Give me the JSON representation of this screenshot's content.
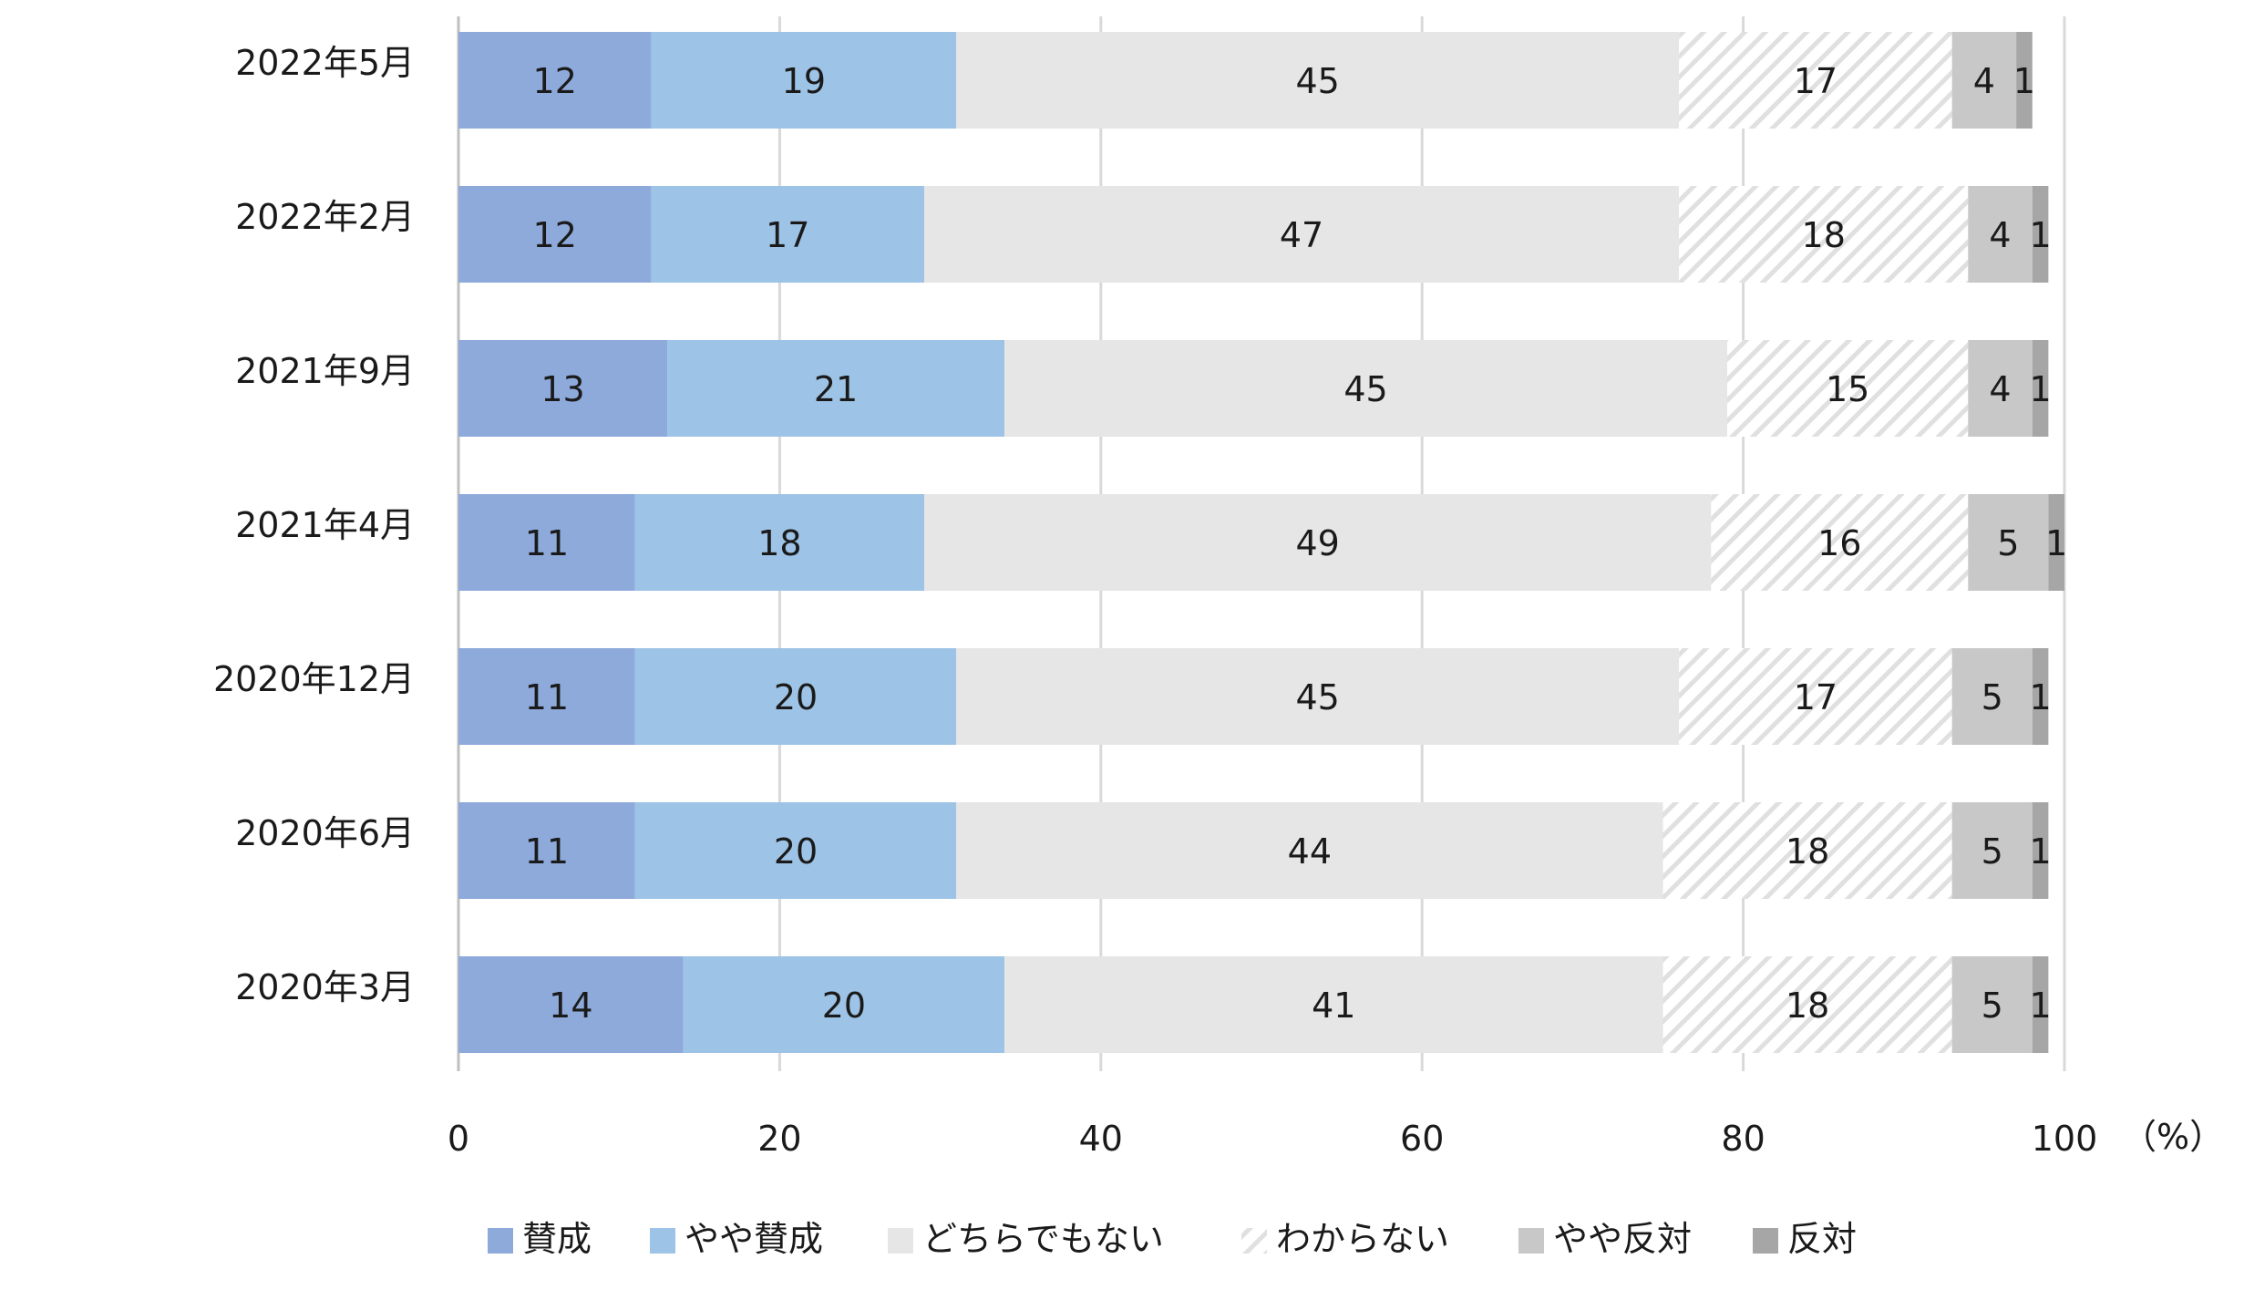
{
  "chart_data": {
    "type": "bar",
    "orientation": "horizontal",
    "stacked": true,
    "categories": [
      "2022年5月",
      "2022年2月",
      "2021年9月",
      "2021年4月",
      "2020年12月",
      "2020年6月",
      "2020年3月"
    ],
    "series": [
      {
        "name": "賛成",
        "color": "#8eaadb",
        "pattern": "solid",
        "values": [
          12,
          12,
          13,
          11,
          11,
          11,
          14
        ]
      },
      {
        "name": "やや賛成",
        "color": "#9dc3e6",
        "pattern": "solid",
        "values": [
          19,
          17,
          21,
          18,
          20,
          20,
          20
        ]
      },
      {
        "name": "どちらでもない",
        "color": "#e6e6e6",
        "pattern": "solid",
        "values": [
          45,
          47,
          45,
          49,
          45,
          44,
          41
        ]
      },
      {
        "name": "わからない",
        "color": "#e8e8e8",
        "pattern": "hatch",
        "values": [
          17,
          18,
          15,
          16,
          17,
          18,
          18
        ]
      },
      {
        "name": "やや反対",
        "color": "#c8c8c8",
        "pattern": "solid",
        "values": [
          4,
          4,
          4,
          5,
          5,
          5,
          5
        ]
      },
      {
        "name": "反対",
        "color": "#a6a6a6",
        "pattern": "solid",
        "values": [
          1,
          1,
          1,
          1,
          1,
          1,
          1
        ]
      }
    ],
    "x_ticks": [
      "0",
      "20",
      "40",
      "60",
      "80",
      "100"
    ],
    "xlim": [
      0,
      100
    ],
    "unit_label": "（%）",
    "title": "",
    "xlabel": "",
    "ylabel": "",
    "grid": true,
    "legend_position": "bottom"
  }
}
